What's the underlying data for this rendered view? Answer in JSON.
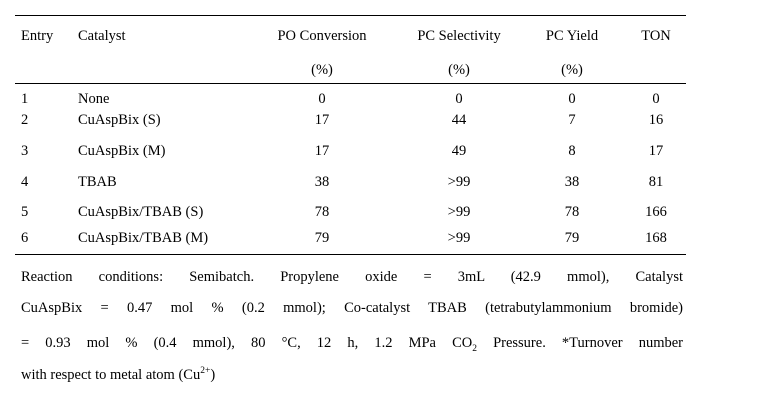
{
  "table": {
    "headers": {
      "entry": "Entry",
      "catalyst": "Catalyst",
      "po_conversion": "PO Conversion",
      "pc_selectivity": "PC Selectivity",
      "pc_yield": "PC Yield",
      "ton": "TON",
      "po_conversion_unit": "(%)",
      "pc_selectivity_unit": "(%)",
      "pc_yield_unit": "(%)"
    },
    "rows": [
      {
        "entry": "1",
        "catalyst": "None",
        "conversion": "0",
        "selectivity": "0",
        "yield": "0",
        "ton": "0"
      },
      {
        "entry": "2",
        "catalyst": "CuAspBix (S)",
        "conversion": "17",
        "selectivity": "44",
        "yield": "7",
        "ton": "16"
      },
      {
        "entry": "3",
        "catalyst": "CuAspBix (M)",
        "conversion": "17",
        "selectivity": "49",
        "yield": "8",
        "ton": "17"
      },
      {
        "entry": "4",
        "catalyst": "TBAB",
        "conversion": "38",
        "selectivity": ">99",
        "yield": "38",
        "ton": "81"
      },
      {
        "entry": "5",
        "catalyst": "CuAspBix/TBAB (S)",
        "conversion": "78",
        "selectivity": ">99",
        "yield": "78",
        "ton": "166"
      },
      {
        "entry": "6",
        "catalyst": "CuAspBix/TBAB (M)",
        "conversion": "79",
        "selectivity": ">99",
        "yield": "79",
        "ton": "168"
      }
    ]
  },
  "footnote": {
    "line1": "Reaction conditions: Semibatch. Propylene oxide = 3mL (42.9 mmol), Catalyst",
    "line2": "CuAspBix = 0.47 mol % (0.2 mmol); Co-catalyst TBAB (tetrabutylammonium bromide)",
    "line3_a": "= 0.93 mol % (0.4 mmol), 80 °C, 12 h, 1.2 MPa CO",
    "line3_sub": "2",
    "line3_b": " Pressure. *Turnover number",
    "line4_a": "with respect to metal atom (Cu",
    "line4_sup": "2+",
    "line4_b": ")"
  }
}
